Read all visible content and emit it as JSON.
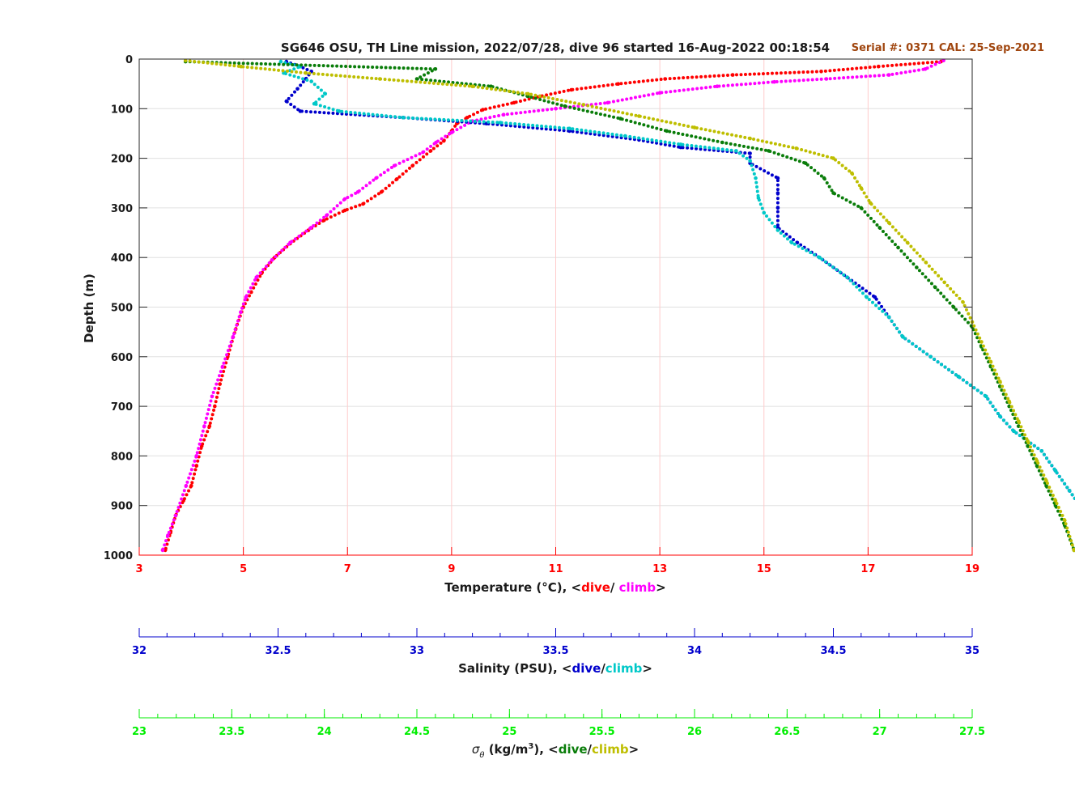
{
  "chart_data": {
    "type": "scatter",
    "title": "SG646 OSU, TH Line mission, 2022/07/28, dive 96 started 16-Aug-2022 00:18:54",
    "annotation": "Serial #: 0371  CAL: 25-Sep-2021",
    "ylabel": "Depth (m)",
    "ylim": [
      0,
      1000
    ],
    "yticks": [
      "0",
      "100",
      "200",
      "300",
      "400",
      "500",
      "600",
      "700",
      "800",
      "900",
      "1000"
    ],
    "grid": true,
    "axes": {
      "temperature": {
        "label": "Temperature (°C), <",
        "dive_label": "dive",
        "sep": "/ ",
        "climb_label": "climb",
        "close": ">",
        "xlim": [
          3,
          19
        ],
        "ticks": [
          "3",
          "5",
          "7",
          "9",
          "11",
          "13",
          "15",
          "17",
          "19"
        ],
        "color": "#ff0000"
      },
      "salinity": {
        "label": "Salinity (PSU), <",
        "dive_label": "dive",
        "sep": "/",
        "climb_label": "climb",
        "close": ">",
        "xlim": [
          32,
          35
        ],
        "ticks": [
          "32",
          "32.5",
          "33",
          "33.5",
          "34",
          "34.5",
          "35"
        ],
        "color": "#0000cc"
      },
      "density": {
        "label_sym": "σ",
        "label_sub": "θ",
        "label_unit": " (kg/m",
        "label_sup": "3",
        "label_tail": "), <",
        "dive_label": "dive",
        "sep": "/",
        "climb_label": "climb",
        "close": ">",
        "xlim": [
          23,
          27.5
        ],
        "ticks": [
          "23",
          "23.5",
          "24",
          "24.5",
          "25",
          "25.5",
          "26",
          "26.5",
          "27",
          "27.5"
        ],
        "color": "#00ee00"
      }
    },
    "series": [
      {
        "id": "temp-dive",
        "axis": "temperature",
        "color": "#ff0000",
        "points": [
          [
            18.4,
            5
          ],
          [
            17.2,
            15
          ],
          [
            16.1,
            25
          ],
          [
            14.4,
            32
          ],
          [
            13.1,
            40
          ],
          [
            12.2,
            50
          ],
          [
            11.3,
            62
          ],
          [
            10.7,
            75
          ],
          [
            10.2,
            88
          ],
          [
            9.6,
            102
          ],
          [
            9.3,
            118
          ],
          [
            9.1,
            130
          ],
          [
            9.0,
            145
          ],
          [
            8.85,
            165
          ],
          [
            8.6,
            185
          ],
          [
            8.25,
            215
          ],
          [
            7.95,
            242
          ],
          [
            7.65,
            268
          ],
          [
            7.3,
            292
          ],
          [
            6.95,
            305
          ],
          [
            6.55,
            325
          ],
          [
            6.25,
            345
          ],
          [
            5.9,
            372
          ],
          [
            5.6,
            400
          ],
          [
            5.35,
            432
          ],
          [
            5.15,
            470
          ],
          [
            5.0,
            500
          ],
          [
            4.85,
            545
          ],
          [
            4.7,
            600
          ],
          [
            4.55,
            655
          ],
          [
            4.45,
            700
          ],
          [
            4.35,
            740
          ],
          [
            4.2,
            780
          ],
          [
            4.1,
            820
          ],
          [
            4.0,
            860
          ],
          [
            3.85,
            890
          ],
          [
            3.7,
            920
          ],
          [
            3.6,
            955
          ],
          [
            3.5,
            990
          ]
        ]
      },
      {
        "id": "temp-climb",
        "axis": "temperature",
        "color": "#ff00ff",
        "points": [
          [
            18.45,
            3
          ],
          [
            18.1,
            20
          ],
          [
            17.4,
            32
          ],
          [
            16.2,
            40
          ],
          [
            15.2,
            46
          ],
          [
            14.1,
            55
          ],
          [
            13.0,
            68
          ],
          [
            12.0,
            88
          ],
          [
            11.0,
            100
          ],
          [
            10.0,
            112
          ],
          [
            9.4,
            125
          ],
          [
            9.0,
            148
          ],
          [
            8.7,
            168
          ],
          [
            8.45,
            188
          ],
          [
            7.9,
            215
          ],
          [
            7.55,
            240
          ],
          [
            7.2,
            268
          ],
          [
            6.95,
            282
          ],
          [
            6.6,
            315
          ],
          [
            6.3,
            340
          ],
          [
            5.9,
            370
          ],
          [
            5.55,
            405
          ],
          [
            5.25,
            440
          ],
          [
            5.05,
            480
          ],
          [
            4.95,
            510
          ],
          [
            4.8,
            560
          ],
          [
            4.6,
            620
          ],
          [
            4.4,
            680
          ],
          [
            4.25,
            740
          ],
          [
            4.1,
            800
          ],
          [
            3.9,
            860
          ],
          [
            3.7,
            920
          ],
          [
            3.55,
            960
          ],
          [
            3.45,
            990
          ]
        ]
      },
      {
        "id": "sal-dive",
        "axis": "salinity",
        "color": "#0000cc",
        "points": [
          [
            32.53,
            5
          ],
          [
            32.58,
            15
          ],
          [
            32.62,
            25
          ],
          [
            32.6,
            40
          ],
          [
            32.57,
            60
          ],
          [
            32.53,
            85
          ],
          [
            32.58,
            105
          ],
          [
            32.95,
            118
          ],
          [
            33.25,
            130
          ],
          [
            33.55,
            145
          ],
          [
            33.8,
            163
          ],
          [
            33.95,
            178
          ],
          [
            34.2,
            190
          ],
          [
            34.2,
            210
          ],
          [
            34.3,
            240
          ],
          [
            34.3,
            270
          ],
          [
            34.3,
            300
          ],
          [
            34.3,
            340
          ],
          [
            34.37,
            370
          ],
          [
            34.45,
            400
          ],
          [
            34.55,
            440
          ],
          [
            34.65,
            480
          ],
          [
            34.7,
            520
          ],
          [
            34.75,
            560
          ],
          [
            34.85,
            600
          ],
          [
            34.95,
            640
          ],
          [
            35.05,
            680
          ],
          [
            35.1,
            720
          ],
          [
            35.15,
            750
          ],
          [
            35.25,
            790
          ],
          [
            35.3,
            830
          ],
          [
            35.35,
            870
          ],
          [
            35.4,
            910
          ],
          [
            35.45,
            950
          ],
          [
            35.45,
            990
          ]
        ]
      },
      {
        "id": "sal-climb",
        "axis": "salinity",
        "color": "#00c8c8",
        "points": [
          [
            32.51,
            5
          ],
          [
            32.58,
            15
          ],
          [
            32.52,
            28
          ],
          [
            32.62,
            45
          ],
          [
            32.67,
            70
          ],
          [
            32.63,
            90
          ],
          [
            32.72,
            105
          ],
          [
            32.95,
            118
          ],
          [
            33.3,
            128
          ],
          [
            33.55,
            140
          ],
          [
            33.75,
            155
          ],
          [
            33.95,
            172
          ],
          [
            34.15,
            185
          ],
          [
            34.2,
            205
          ],
          [
            34.22,
            240
          ],
          [
            34.23,
            280
          ],
          [
            34.25,
            310
          ],
          [
            34.3,
            345
          ],
          [
            34.35,
            370
          ],
          [
            34.45,
            400
          ],
          [
            34.55,
            440
          ],
          [
            34.62,
            480
          ],
          [
            34.7,
            520
          ],
          [
            34.75,
            560
          ],
          [
            34.85,
            600
          ],
          [
            34.95,
            640
          ],
          [
            35.05,
            680
          ],
          [
            35.1,
            720
          ],
          [
            35.15,
            750
          ],
          [
            35.25,
            790
          ],
          [
            35.3,
            830
          ],
          [
            35.35,
            870
          ],
          [
            35.4,
            910
          ],
          [
            35.45,
            950
          ],
          [
            35.5,
            990
          ]
        ]
      },
      {
        "id": "dens-dive",
        "axis": "density",
        "color": "#0a7d0a",
        "points": [
          [
            23.25,
            5
          ],
          [
            24.6,
            20
          ],
          [
            24.5,
            40
          ],
          [
            24.9,
            55
          ],
          [
            25.1,
            75
          ],
          [
            25.3,
            95
          ],
          [
            25.6,
            120
          ],
          [
            25.85,
            145
          ],
          [
            26.15,
            168
          ],
          [
            26.4,
            185
          ],
          [
            26.6,
            210
          ],
          [
            26.7,
            240
          ],
          [
            26.75,
            270
          ],
          [
            26.9,
            300
          ],
          [
            27.0,
            340
          ],
          [
            27.1,
            380
          ],
          [
            27.2,
            420
          ],
          [
            27.3,
            460
          ],
          [
            27.4,
            500
          ],
          [
            27.5,
            540
          ],
          [
            27.55,
            580
          ],
          [
            27.6,
            620
          ],
          [
            27.65,
            660
          ],
          [
            27.7,
            700
          ],
          [
            27.75,
            740
          ],
          [
            27.8,
            780
          ],
          [
            27.85,
            820
          ],
          [
            27.9,
            860
          ],
          [
            27.95,
            900
          ],
          [
            28.0,
            940
          ],
          [
            28.05,
            990
          ]
        ]
      },
      {
        "id": "dens-climb",
        "axis": "density",
        "color": "#bebe00",
        "points": [
          [
            23.25,
            3
          ],
          [
            23.55,
            15
          ],
          [
            23.9,
            28
          ],
          [
            24.3,
            40
          ],
          [
            24.8,
            55
          ],
          [
            25.1,
            70
          ],
          [
            25.4,
            92
          ],
          [
            25.7,
            115
          ],
          [
            26.0,
            138
          ],
          [
            26.3,
            160
          ],
          [
            26.55,
            180
          ],
          [
            26.75,
            200
          ],
          [
            26.85,
            230
          ],
          [
            26.9,
            260
          ],
          [
            26.95,
            290
          ],
          [
            27.05,
            330
          ],
          [
            27.15,
            370
          ],
          [
            27.25,
            410
          ],
          [
            27.35,
            450
          ],
          [
            27.45,
            490
          ],
          [
            27.5,
            530
          ],
          [
            27.55,
            570
          ],
          [
            27.6,
            610
          ],
          [
            27.65,
            650
          ],
          [
            27.7,
            690
          ],
          [
            27.75,
            730
          ],
          [
            27.8,
            770
          ],
          [
            27.85,
            810
          ],
          [
            27.9,
            850
          ],
          [
            27.95,
            890
          ],
          [
            28.0,
            930
          ],
          [
            28.05,
            990
          ]
        ]
      }
    ]
  }
}
